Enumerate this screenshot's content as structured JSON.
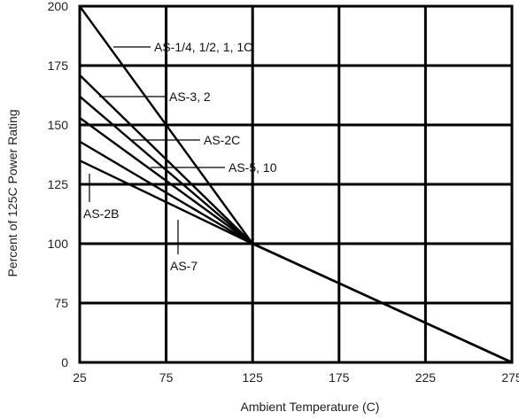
{
  "chart_data": {
    "type": "line",
    "title": "",
    "xlabel": "Ambient Temperature (C)",
    "ylabel": "Percent of 125C Power Rating",
    "xlim": [
      25,
      275
    ],
    "ylim": [
      0,
      200
    ],
    "xticks": [
      "25",
      "75",
      "125",
      "175",
      "225",
      "275"
    ],
    "yticks": [
      "0",
      "75",
      "100",
      "125",
      "150",
      "175",
      "200"
    ],
    "grid": true,
    "series": [
      {
        "name": "AS-1/4, 1/2, 1, 1C",
        "x": [
          25,
          125,
          275
        ],
        "y": [
          200,
          100,
          0
        ]
      },
      {
        "name": "AS-3, 2",
        "x": [
          25,
          125,
          275
        ],
        "y": [
          171,
          100,
          0
        ]
      },
      {
        "name": "AS-2C",
        "x": [
          25,
          125,
          275
        ],
        "y": [
          162,
          100,
          0
        ]
      },
      {
        "name": "AS-5, 10",
        "x": [
          25,
          125,
          275
        ],
        "y": [
          153,
          100,
          0
        ]
      },
      {
        "name": "AS-2B",
        "x": [
          25,
          125,
          275
        ],
        "y": [
          143,
          100,
          0
        ]
      },
      {
        "name": "AS-7",
        "x": [
          25,
          125,
          275
        ],
        "y": [
          135,
          100,
          0
        ]
      }
    ]
  }
}
